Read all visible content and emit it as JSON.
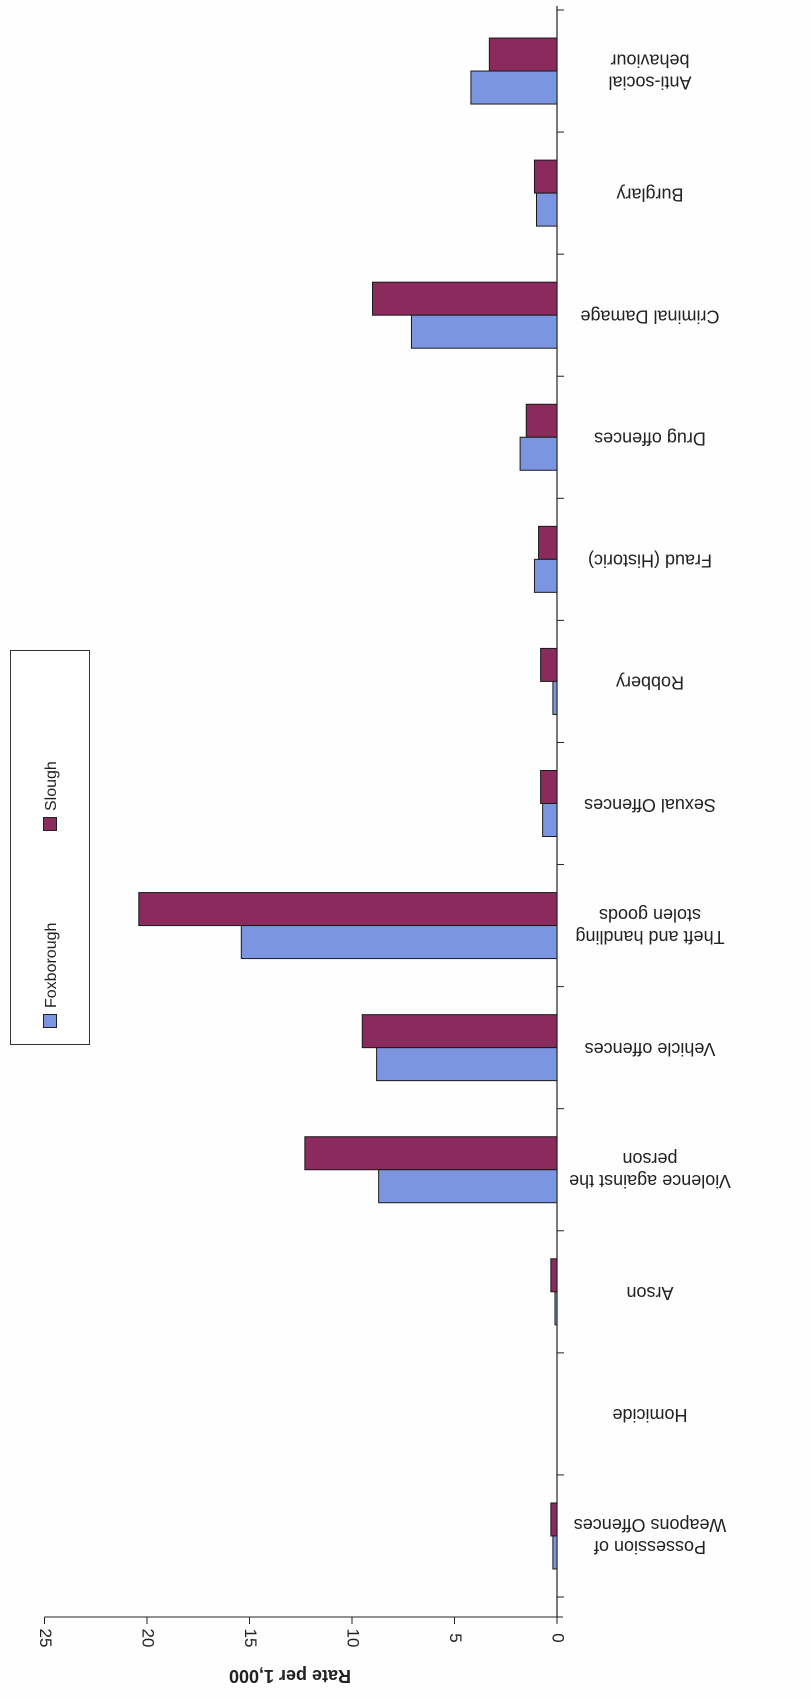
{
  "chart_data": {
    "type": "bar",
    "orientation": "horizontal",
    "categories": [
      "Anti-social behaviour",
      "Burglary",
      "Criminal Damage",
      "Drug offences",
      "Fraud (Historic)",
      "Robbery",
      "Sexual Offences",
      "Theft and handling stolen goods",
      "Vehicle offences",
      "Violence against the person",
      "Arson",
      "Homicide",
      "Possession of Weapons Offences"
    ],
    "category_lines": [
      [
        "Anti-social",
        "behaviour"
      ],
      [
        "Burglary"
      ],
      [
        "Criminal Damage"
      ],
      [
        "Drug offences"
      ],
      [
        "Fraud (Historic)"
      ],
      [
        "Robbery"
      ],
      [
        "Sexual Offences"
      ],
      [
        "Theft and handling",
        "stolen goods"
      ],
      [
        "Vehicle offences"
      ],
      [
        "Violence against the",
        "person"
      ],
      [
        "Arson"
      ],
      [
        "Homicide"
      ],
      [
        "Possession of",
        "Weapons Offences"
      ]
    ],
    "series": [
      {
        "name": "Foxborough",
        "color": "#7b95e0",
        "values": [
          4.2,
          1.0,
          7.1,
          1.8,
          1.1,
          0.2,
          0.7,
          15.4,
          8.8,
          8.7,
          0.1,
          0.0,
          0.2
        ]
      },
      {
        "name": "Slough",
        "color": "#8b2a5c",
        "values": [
          3.3,
          1.1,
          9.0,
          1.5,
          0.9,
          0.8,
          0.8,
          20.4,
          9.5,
          12.3,
          0.3,
          0.0,
          0.3
        ]
      }
    ],
    "ylabel": "Rate per 1,000",
    "xticks": [
      "0",
      "5",
      "10",
      "15",
      "20",
      "25"
    ],
    "xlim": [
      0,
      25
    ],
    "legend_position": "right",
    "grid": false
  }
}
